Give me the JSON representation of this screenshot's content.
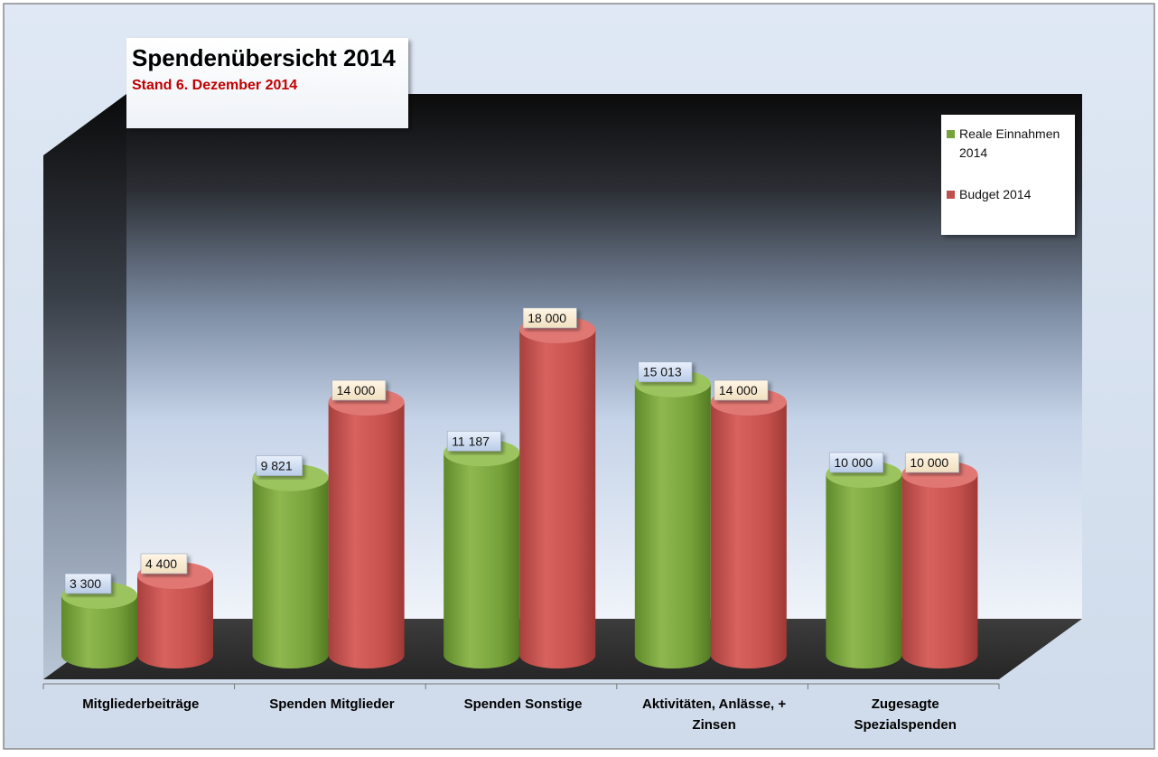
{
  "chart_data": {
    "type": "bar",
    "title": "Spendenübersicht 2014",
    "subtitle": "Stand 6. Dezember 2014",
    "categories": [
      [
        "Mitgliederbeiträge"
      ],
      [
        "Spenden Mitglieder"
      ],
      [
        "Spenden Sonstige"
      ],
      [
        "Aktivitäten, Anlässe, +",
        "Zinsen"
      ],
      [
        "Zugesagte",
        "Spezialspenden"
      ]
    ],
    "series": [
      {
        "name": "Reale Einnahmen 2014",
        "name_lines": [
          "Reale Einnahmen",
          "2014"
        ],
        "color": "#77a23b",
        "values": [
          3300,
          9821,
          11187,
          15013,
          10000
        ],
        "labels": [
          "3 300",
          "9 821",
          "11 187",
          "15 013",
          "10 000"
        ]
      },
      {
        "name": "Budget 2014",
        "name_lines": [
          "Budget 2014"
        ],
        "color": "#c0504d",
        "values": [
          4400,
          14000,
          18000,
          14000,
          10000
        ],
        "labels": [
          "4 400",
          "14 000",
          "18 000",
          "14 000",
          "10 000"
        ]
      }
    ],
    "ylim": [
      0,
      20000
    ],
    "legend": "top-right",
    "grid": false
  }
}
